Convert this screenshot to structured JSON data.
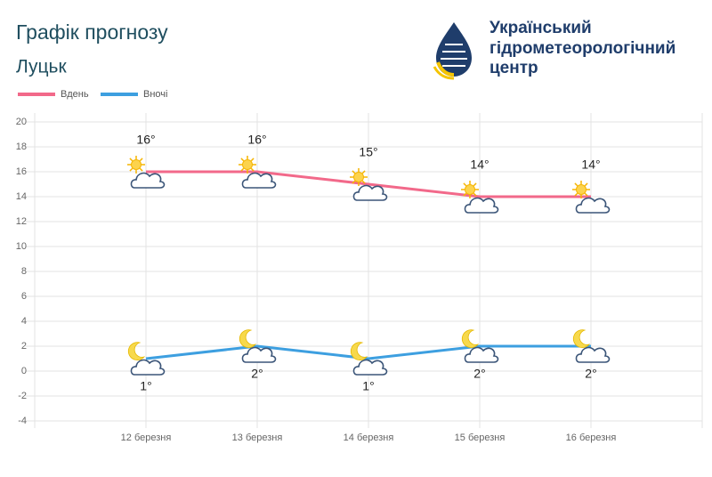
{
  "chart_data": {
    "type": "line",
    "title": "Графік прогнозу",
    "subtitle": "Луцьк",
    "categories": [
      "12 березня",
      "13 березня",
      "14 березня",
      "15 березня",
      "16 березня"
    ],
    "series": [
      {
        "name": "Вдень",
        "color": "#f2698a",
        "values": [
          16,
          16,
          15,
          14,
          14
        ],
        "value_labels": [
          "16°",
          "16°",
          "15°",
          "14°",
          "14°"
        ]
      },
      {
        "name": "Вночі",
        "color": "#3d9fe0",
        "values": [
          1,
          2,
          1,
          2,
          2
        ],
        "value_labels": [
          "1°",
          "2°",
          "1°",
          "2°",
          "2°"
        ]
      }
    ],
    "ylim": [
      -4,
      20
    ],
    "yticks": [
      -4,
      -2,
      0,
      2,
      4,
      6,
      8,
      10,
      12,
      14,
      16,
      18,
      20
    ],
    "grid": true,
    "legend": "top-left"
  },
  "logo": {
    "lines": [
      "Український",
      "гідрометеорологічний",
      "центр"
    ]
  }
}
